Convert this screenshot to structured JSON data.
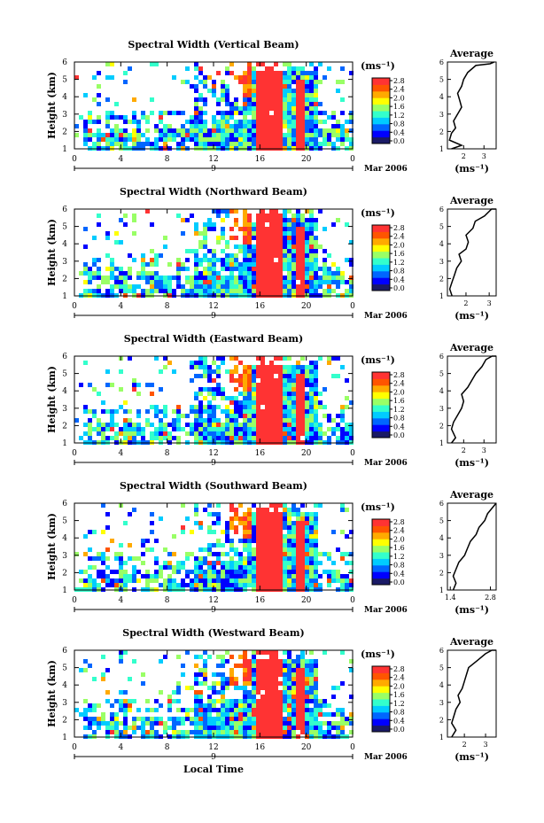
{
  "chart_data": {
    "type": "heatmap",
    "xlabel": "Local Time",
    "date_label": "Mar 2006",
    "day_label": "9",
    "x_ticks": [
      "0",
      "4",
      "8",
      "12",
      "16",
      "20",
      "0"
    ],
    "xlim": [
      0,
      24
    ],
    "ylabel": "Height (km)",
    "y_ticks": [
      "1",
      "2",
      "3",
      "4",
      "5",
      "6"
    ],
    "ylim": [
      1,
      6
    ],
    "colorbar_unit": "(ms⁻¹)",
    "colorbar_ticks": [
      "2.8",
      "2.4",
      "2.0",
      "1.6",
      "1.2",
      "0.8",
      "0.4",
      "0.0"
    ],
    "colorbar_range": [
      0,
      3.0
    ],
    "colors": [
      "#1a1a66",
      "#0000ff",
      "#0066ff",
      "#00ccff",
      "#33ffcc",
      "#99ff66",
      "#ffff00",
      "#ffaa00",
      "#ff5500",
      "#ff3333"
    ],
    "panels": [
      {
        "title": "Spectral Width (Vertical Beam)",
        "avg_title": "Average",
        "avg_x_ticks": [
          "2",
          "3"
        ],
        "avg_xlim": [
          1.2,
          3.6
        ],
        "avg_unit": "(ms⁻¹)",
        "avg_profile": [
          [
            1.4,
            1.0
          ],
          [
            1.9,
            1.2
          ],
          [
            1.3,
            1.5
          ],
          [
            1.4,
            1.9
          ],
          [
            1.6,
            2.2
          ],
          [
            1.5,
            2.6
          ],
          [
            1.7,
            3.0
          ],
          [
            1.9,
            3.4
          ],
          [
            1.8,
            3.8
          ],
          [
            1.7,
            4.2
          ],
          [
            1.9,
            4.6
          ],
          [
            2.0,
            5.0
          ],
          [
            2.2,
            5.4
          ],
          [
            2.6,
            5.8
          ],
          [
            3.3,
            5.9
          ],
          [
            3.5,
            6.3
          ]
        ]
      },
      {
        "title": "Spectral Width (Northward Beam)",
        "avg_title": "Average",
        "avg_x_ticks": [
          "2",
          "3"
        ],
        "avg_xlim": [
          1.2,
          3.3
        ],
        "avg_unit": "(ms⁻¹)",
        "avg_profile": [
          [
            1.4,
            1.0
          ],
          [
            1.3,
            1.4
          ],
          [
            1.4,
            1.8
          ],
          [
            1.5,
            2.2
          ],
          [
            1.6,
            2.6
          ],
          [
            1.8,
            3.0
          ],
          [
            1.7,
            3.4
          ],
          [
            2.0,
            3.7
          ],
          [
            2.1,
            4.1
          ],
          [
            2.0,
            4.5
          ],
          [
            2.3,
            4.9
          ],
          [
            2.4,
            5.3
          ],
          [
            2.8,
            5.6
          ],
          [
            3.1,
            6.0
          ],
          [
            3.3,
            6.3
          ]
        ]
      },
      {
        "title": "Spectral Width (Eastward Beam)",
        "avg_title": "Average",
        "avg_x_ticks": [
          "2",
          "3"
        ],
        "avg_xlim": [
          1.2,
          3.6
        ],
        "avg_unit": "(ms⁻¹)",
        "avg_profile": [
          [
            1.4,
            1.0
          ],
          [
            1.6,
            1.3
          ],
          [
            1.4,
            1.8
          ],
          [
            1.5,
            2.2
          ],
          [
            1.7,
            2.6
          ],
          [
            1.9,
            3.0
          ],
          [
            2.0,
            3.4
          ],
          [
            1.9,
            3.8
          ],
          [
            2.2,
            4.2
          ],
          [
            2.4,
            4.6
          ],
          [
            2.6,
            5.0
          ],
          [
            2.9,
            5.4
          ],
          [
            3.1,
            5.8
          ],
          [
            3.4,
            6.1
          ],
          [
            3.6,
            6.4
          ]
        ]
      },
      {
        "title": "Spectral Width (Southward Beam)",
        "avg_title": "Average",
        "avg_x_ticks": [
          "1.4",
          "2.8"
        ],
        "avg_xlim": [
          1.3,
          3.0
        ],
        "avg_unit": "(ms⁻¹)",
        "avg_profile": [
          [
            1.5,
            1.0
          ],
          [
            1.6,
            1.4
          ],
          [
            1.5,
            1.8
          ],
          [
            1.6,
            2.2
          ],
          [
            1.7,
            2.6
          ],
          [
            1.9,
            3.0
          ],
          [
            2.0,
            3.4
          ],
          [
            2.1,
            3.8
          ],
          [
            2.3,
            4.2
          ],
          [
            2.4,
            4.6
          ],
          [
            2.6,
            5.0
          ],
          [
            2.7,
            5.4
          ],
          [
            2.9,
            5.8
          ],
          [
            3.0,
            6.2
          ]
        ]
      },
      {
        "title": "Spectral Width (Westward Beam)",
        "avg_title": "Average",
        "avg_x_ticks": [
          "2",
          "3"
        ],
        "avg_xlim": [
          1.2,
          3.5
        ],
        "avg_unit": "(ms⁻¹)",
        "avg_profile": [
          [
            1.4,
            1.0
          ],
          [
            1.6,
            1.4
          ],
          [
            1.4,
            1.8
          ],
          [
            1.5,
            2.2
          ],
          [
            1.6,
            2.6
          ],
          [
            1.8,
            3.0
          ],
          [
            1.7,
            3.4
          ],
          [
            1.9,
            3.8
          ],
          [
            2.0,
            4.2
          ],
          [
            2.1,
            4.6
          ],
          [
            2.2,
            5.0
          ],
          [
            2.6,
            5.4
          ],
          [
            3.0,
            5.8
          ],
          [
            3.3,
            6.1
          ],
          [
            3.5,
            6.4
          ]
        ]
      }
    ]
  }
}
